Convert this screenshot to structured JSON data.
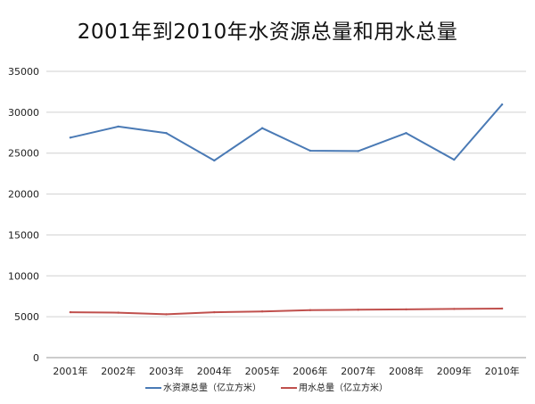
{
  "chart_data": {
    "type": "line",
    "title": "2001年到2010年水资源总量和用水总量",
    "categories": [
      "2001年",
      "2002年",
      "2003年",
      "2004年",
      "2005年",
      "2006年",
      "2007年",
      "2008年",
      "2009年",
      "2010年"
    ],
    "series": [
      {
        "name": "水资源总量（亿立方米）",
        "color": "#4a7ab5",
        "values": [
          26900,
          28250,
          27450,
          24100,
          28050,
          25300,
          25250,
          27450,
          24200,
          30950
        ]
      },
      {
        "name": "用水总量（亿立方米）",
        "color": "#c0504d",
        "values": [
          5550,
          5500,
          5300,
          5550,
          5650,
          5800,
          5850,
          5900,
          5950,
          6000
        ]
      }
    ],
    "ylim": [
      0,
      35000
    ],
    "yticks": [
      0,
      5000,
      10000,
      15000,
      20000,
      25000,
      30000,
      35000
    ],
    "grid": true,
    "legend_position": "bottom"
  }
}
